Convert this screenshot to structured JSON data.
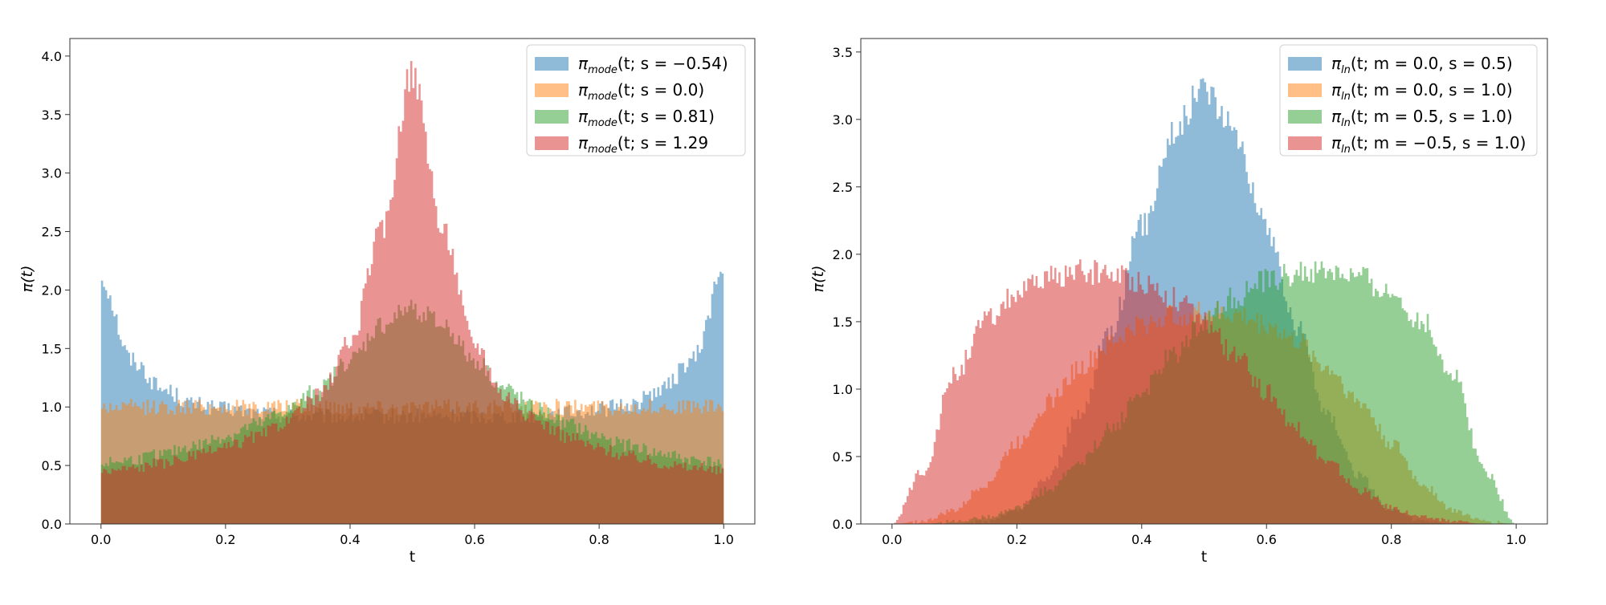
{
  "chart_data": [
    {
      "type": "area",
      "xlabel": "t",
      "ylabel": "π(t)",
      "xlim": [
        -0.05,
        1.05
      ],
      "ylim": [
        0,
        4.15
      ],
      "xticks": [
        "0.0",
        "0.2",
        "0.4",
        "0.6",
        "0.8",
        "1.0"
      ],
      "yticks": [
        "0.0",
        "0.5",
        "1.0",
        "1.5",
        "2.0",
        "2.5",
        "3.0",
        "3.5",
        "4.0"
      ],
      "legend_position": "top-right",
      "x": [
        0.0,
        0.05,
        0.1,
        0.15,
        0.2,
        0.25,
        0.3,
        0.35,
        0.4,
        0.45,
        0.5,
        0.55,
        0.6,
        0.65,
        0.7,
        0.75,
        0.8,
        0.85,
        0.9,
        0.95,
        1.0
      ],
      "series": [
        {
          "name": "π",
          "sub": "mode",
          "rest": "(t; s = −0.54)",
          "color": "#1f77b4",
          "values": [
            2.1,
            1.4,
            1.15,
            1.02,
            0.98,
            0.95,
            0.93,
            0.92,
            0.92,
            0.92,
            0.92,
            0.92,
            0.92,
            0.92,
            0.93,
            0.95,
            0.98,
            1.02,
            1.15,
            1.4,
            2.15
          ]
        },
        {
          "name": "π",
          "sub": "mode",
          "rest": "(t; s = 0.0)",
          "color": "#ff7f0e",
          "values": [
            1.0,
            1.0,
            1.0,
            1.0,
            1.0,
            1.0,
            1.0,
            1.0,
            1.0,
            1.0,
            1.0,
            1.0,
            1.0,
            1.0,
            1.0,
            1.0,
            1.0,
            1.0,
            1.0,
            1.0,
            1.0
          ]
        },
        {
          "name": "π",
          "sub": "mode",
          "rest": "(t; s = 0.81)",
          "color": "#2ca02c",
          "values": [
            0.52,
            0.55,
            0.6,
            0.67,
            0.75,
            0.85,
            0.98,
            1.15,
            1.4,
            1.7,
            1.85,
            1.7,
            1.4,
            1.15,
            0.98,
            0.85,
            0.75,
            0.67,
            0.6,
            0.55,
            0.52
          ]
        },
        {
          "name": "π",
          "sub": "mode",
          "rest": "(t; s = 1.29",
          "color": "#d62728",
          "values": [
            0.45,
            0.48,
            0.52,
            0.58,
            0.65,
            0.75,
            0.88,
            1.1,
            1.55,
            2.5,
            3.85,
            2.5,
            1.55,
            1.1,
            0.88,
            0.75,
            0.65,
            0.58,
            0.52,
            0.48,
            0.45
          ]
        }
      ]
    },
    {
      "type": "area",
      "xlabel": "t",
      "ylabel": "π(t)",
      "xlim": [
        -0.05,
        1.05
      ],
      "ylim": [
        0,
        3.6
      ],
      "xticks": [
        "0.0",
        "0.2",
        "0.4",
        "0.6",
        "0.8",
        "1.0"
      ],
      "yticks": [
        "0.0",
        "0.5",
        "1.0",
        "1.5",
        "2.0",
        "2.5",
        "3.0",
        "3.5"
      ],
      "legend_position": "top-right",
      "x": [
        0.0,
        0.05,
        0.1,
        0.15,
        0.2,
        0.25,
        0.3,
        0.35,
        0.4,
        0.45,
        0.5,
        0.55,
        0.6,
        0.65,
        0.7,
        0.75,
        0.8,
        0.85,
        0.9,
        0.95,
        1.0
      ],
      "series": [
        {
          "name": "π",
          "sub": "ln",
          "rest": "(t; m = 0.0, s = 0.5)",
          "color": "#1f77b4",
          "values": [
            0.0,
            0.0,
            0.0,
            0.02,
            0.1,
            0.35,
            0.8,
            1.45,
            2.2,
            2.9,
            3.25,
            2.9,
            2.2,
            1.45,
            0.8,
            0.35,
            0.1,
            0.02,
            0.0,
            0.0,
            0.0
          ]
        },
        {
          "name": "π",
          "sub": "ln",
          "rest": "(t; m = 0.0, s = 1.0)",
          "color": "#ff7f0e",
          "values": [
            0.0,
            0.02,
            0.1,
            0.3,
            0.6,
            0.9,
            1.15,
            1.35,
            1.48,
            1.55,
            1.57,
            1.55,
            1.48,
            1.35,
            1.15,
            0.9,
            0.6,
            0.3,
            0.1,
            0.02,
            0.0
          ]
        },
        {
          "name": "π",
          "sub": "ln",
          "rest": "(t; m = 0.5, s = 1.0)",
          "color": "#2ca02c",
          "values": [
            0.0,
            0.0,
            0.02,
            0.05,
            0.12,
            0.25,
            0.45,
            0.7,
            0.98,
            1.25,
            1.5,
            1.68,
            1.8,
            1.86,
            1.87,
            1.82,
            1.7,
            1.5,
            1.1,
            0.4,
            0.0
          ]
        },
        {
          "name": "π",
          "sub": "ln",
          "rest": "(t; m = −0.5, s = 1.0)",
          "color": "#d62728",
          "values": [
            0.0,
            0.4,
            1.1,
            1.5,
            1.7,
            1.82,
            1.87,
            1.86,
            1.8,
            1.68,
            1.5,
            1.25,
            0.98,
            0.7,
            0.45,
            0.25,
            0.12,
            0.05,
            0.02,
            0.0,
            0.0
          ]
        }
      ]
    }
  ]
}
